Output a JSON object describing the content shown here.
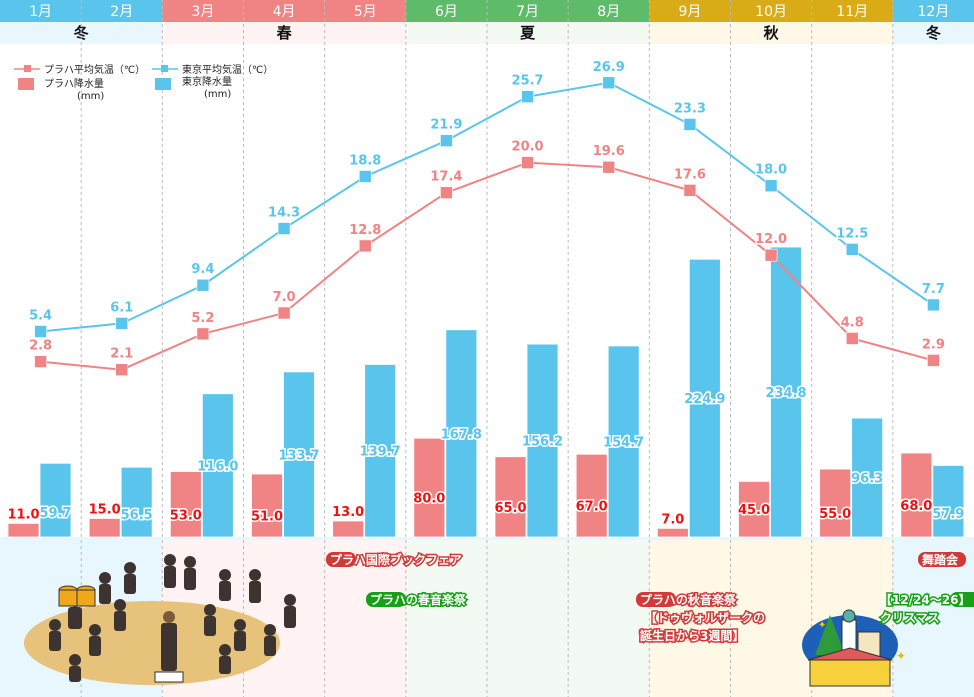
{
  "colors": {
    "prague": "#f08383",
    "prague_label": "#ee1111",
    "tokyo": "#5ac5ec",
    "winter_header": "#5ac5ec",
    "spring_header": "#f08383",
    "summer_header": "#5dbb6a",
    "autumn_header": "#d9ab16",
    "winter_bg": "#e8f7fd",
    "spring_bg": "#fff3f3",
    "summer_bg": "#f2faf3",
    "autumn_bg": "#fff8e6",
    "event_red": "#d23a3a",
    "event_green": "#17a017"
  },
  "months": [
    {
      "label": "1月",
      "season": "winter"
    },
    {
      "label": "2月",
      "season": "winter"
    },
    {
      "label": "3月",
      "season": "spring"
    },
    {
      "label": "4月",
      "season": "spring"
    },
    {
      "label": "5月",
      "season": "spring"
    },
    {
      "label": "6月",
      "season": "summer"
    },
    {
      "label": "7月",
      "season": "summer"
    },
    {
      "label": "8月",
      "season": "summer"
    },
    {
      "label": "9月",
      "season": "autumn"
    },
    {
      "label": "10月",
      "season": "autumn"
    },
    {
      "label": "11月",
      "season": "autumn"
    },
    {
      "label": "12月",
      "season": "winter"
    }
  ],
  "seasons": [
    {
      "label": "冬",
      "key": "winter",
      "start": 0,
      "end": 1
    },
    {
      "label": "春",
      "key": "spring",
      "start": 2,
      "end": 4
    },
    {
      "label": "夏",
      "key": "summer",
      "start": 5,
      "end": 7
    },
    {
      "label": "秋",
      "key": "autumn",
      "start": 8,
      "end": 10
    },
    {
      "label": "冬",
      "key": "winter",
      "start": 11,
      "end": 11
    }
  ],
  "legend": {
    "prague_temp": "プラハ平均気温（℃）",
    "tokyo_temp": "東京平均気温（℃）",
    "prague_rain_line1": "プラハ降水量",
    "prague_rain_line2": "(mm)",
    "tokyo_rain_line1": "東京降水量",
    "tokyo_rain_line2": "(mm)"
  },
  "events": [
    {
      "label": "プラハ国際ブックフェア",
      "color": "red"
    },
    {
      "label": "プラハの春音楽祭",
      "color": "green"
    },
    {
      "label": "プラハの秋音楽祭",
      "color": "red"
    },
    {
      "label": "【ドゥヴォルザークの",
      "color": "red"
    },
    {
      "label": "誕生日から3週間】",
      "color": "red"
    },
    {
      "label": "舞踏会",
      "color": "red"
    },
    {
      "label": "【12/24～26】",
      "color": "green"
    },
    {
      "label": "クリスマス",
      "color": "green"
    }
  ],
  "illustrations": {
    "orchestra": "orchestra-illustration",
    "christmas_market": "christmas-market-illustration"
  },
  "chart_data": {
    "type": "bar+line",
    "title": "",
    "categories": [
      "1月",
      "2月",
      "3月",
      "4月",
      "5月",
      "6月",
      "7月",
      "8月",
      "9月",
      "10月",
      "11月",
      "12月"
    ],
    "series": [
      {
        "name": "プラハ平均気温（℃）",
        "type": "line",
        "axis": "temperature",
        "values": [
          2.8,
          2.1,
          5.2,
          7.0,
          12.8,
          17.4,
          20.0,
          19.6,
          17.6,
          12.0,
          4.8,
          2.9
        ]
      },
      {
        "name": "東京平均気温（℃）",
        "type": "line",
        "axis": "temperature",
        "values": [
          5.4,
          6.1,
          9.4,
          14.3,
          18.8,
          21.9,
          25.7,
          26.9,
          23.3,
          18.0,
          12.5,
          7.7
        ]
      },
      {
        "name": "プラハ降水量(mm)",
        "type": "bar",
        "axis": "precipitation",
        "values": [
          11.0,
          15.0,
          53.0,
          51.0,
          13.0,
          80.0,
          65.0,
          67.0,
          7.0,
          45.0,
          55.0,
          68.0
        ]
      },
      {
        "name": "東京降水量(mm)",
        "type": "bar",
        "axis": "precipitation",
        "values": [
          59.7,
          56.5,
          116.0,
          133.7,
          139.7,
          167.8,
          156.2,
          154.7,
          224.9,
          234.8,
          96.3,
          57.9
        ]
      }
    ],
    "precip_range": [
      0,
      235
    ],
    "temp_range": [
      0,
      27
    ],
    "grid": "vertical dashed month separators",
    "legend": "top-left",
    "xlabel": "",
    "ylabel": ""
  }
}
